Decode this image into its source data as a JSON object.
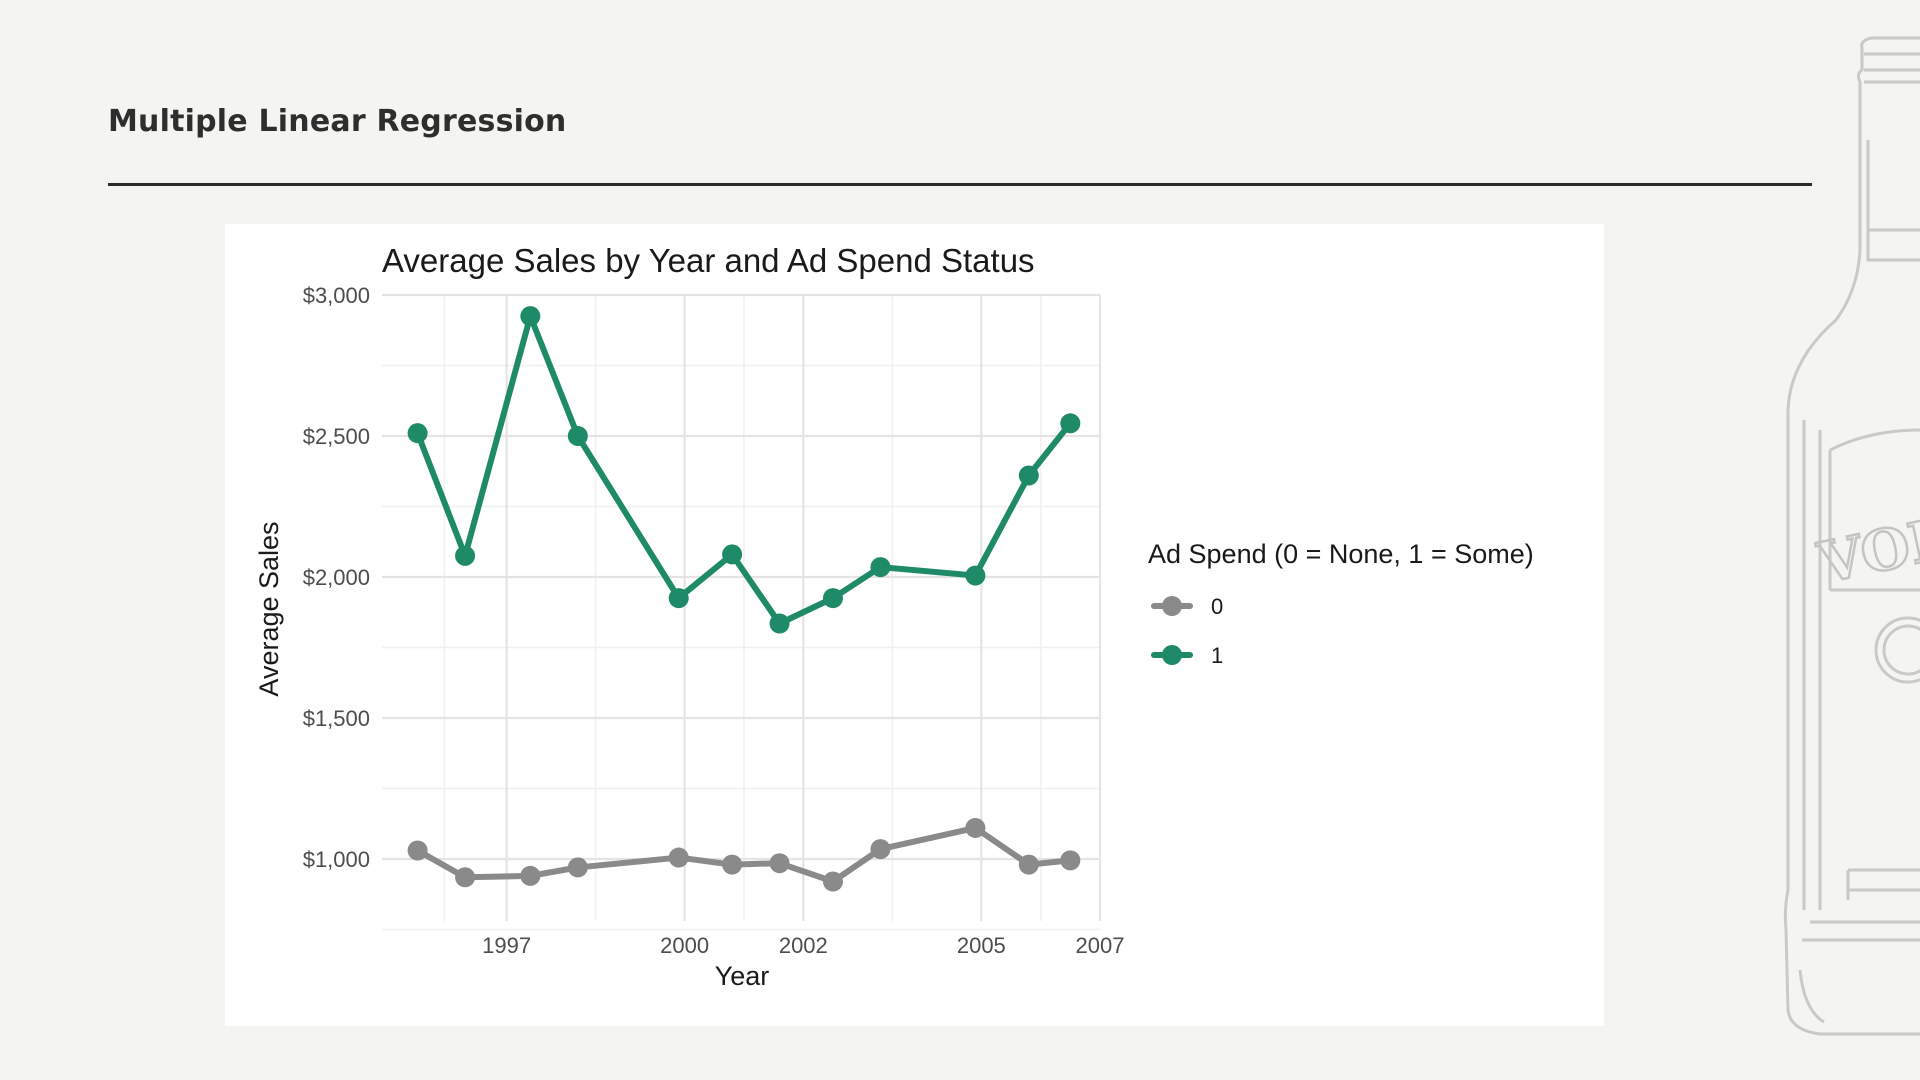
{
  "slide": {
    "title": "Multiple Linear Regression"
  },
  "decoration": {
    "bottle_label": "VOD"
  },
  "chart_data": {
    "type": "line",
    "title": "Average Sales by Year and Ad Spend Status",
    "xlabel": "Year",
    "ylabel": "Average Sales",
    "x": [
      1995.5,
      1996.3,
      1997.4,
      1998.2,
      1999.9,
      2000.8,
      2001.6,
      2002.5,
      2003.3,
      2004.9,
      2005.8,
      2006.5
    ],
    "xlim": [
      1994.9,
      2007
    ],
    "ylim": [
      780,
      3000
    ],
    "x_ticks": [
      1997,
      2000,
      2002,
      2005,
      2007
    ],
    "x_tick_labels": [
      "1997",
      "2000",
      "2002",
      "2005",
      "2007"
    ],
    "y_ticks": [
      1000,
      1500,
      2000,
      2500,
      3000
    ],
    "y_tick_labels": [
      "$1,000",
      "$1,500",
      "$2,000",
      "$2,500",
      "$3,000"
    ],
    "grid": true,
    "legend": {
      "title": "Ad Spend (0 = None, 1 = Some)",
      "position": "right"
    },
    "series": [
      {
        "name": "0",
        "color": "#8a8a8a",
        "values": [
          1030,
          935,
          940,
          970,
          1005,
          980,
          985,
          920,
          1035,
          1110,
          980,
          995
        ]
      },
      {
        "name": "1",
        "color": "#1f8a68",
        "values": [
          2510,
          2075,
          2925,
          2500,
          1925,
          2080,
          1835,
          1925,
          2035,
          2005,
          2360,
          2545
        ]
      }
    ]
  }
}
